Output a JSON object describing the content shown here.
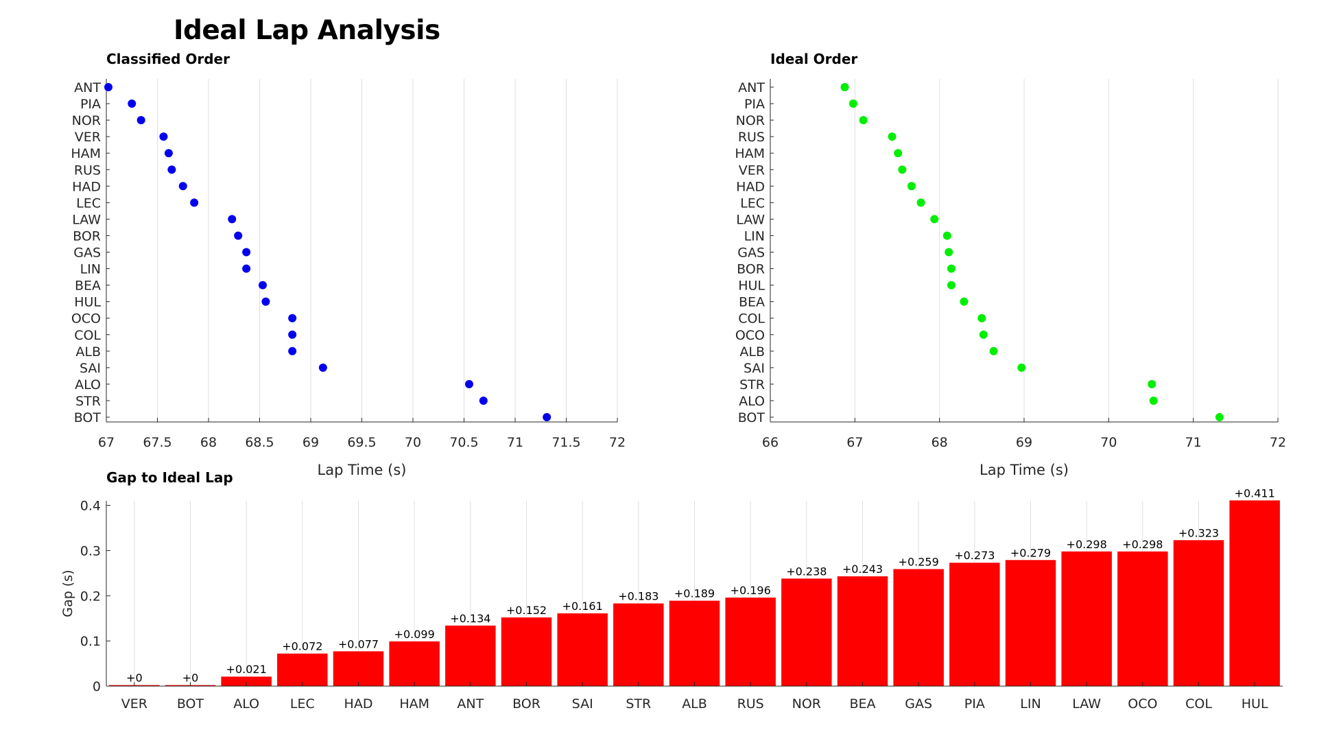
{
  "title": "Ideal Lap Analysis",
  "colors": {
    "classified": "#0000ee",
    "ideal": "#00ee00",
    "bar": "#ff0000",
    "grid": "#dedede"
  },
  "chart_data": [
    {
      "type": "scatter",
      "title": "Classified Order",
      "xlabel": "Lap Time (s)",
      "ylabel": "",
      "xlim": [
        67,
        72
      ],
      "xticks": [
        67,
        67.5,
        68,
        68.5,
        69,
        69.5,
        70,
        70.5,
        71,
        71.5,
        72
      ],
      "grid": true,
      "categories": [
        "ANT",
        "PIA",
        "NOR",
        "VER",
        "HAM",
        "RUS",
        "HAD",
        "LEC",
        "LAW",
        "BOR",
        "GAS",
        "LIN",
        "BEA",
        "HUL",
        "OCO",
        "COL",
        "ALB",
        "SAI",
        "ALO",
        "STR",
        "BOT"
      ],
      "values": [
        67.02,
        67.25,
        67.34,
        67.56,
        67.61,
        67.64,
        67.75,
        67.86,
        68.23,
        68.29,
        68.37,
        68.37,
        68.53,
        68.56,
        68.82,
        68.82,
        68.82,
        69.12,
        70.55,
        70.69,
        71.31
      ]
    },
    {
      "type": "scatter",
      "title": "Ideal Order",
      "xlabel": "Lap Time (s)",
      "ylabel": "",
      "xlim": [
        66,
        72
      ],
      "xticks": [
        66,
        67,
        68,
        69,
        70,
        71,
        72
      ],
      "grid": true,
      "categories": [
        "ANT",
        "PIA",
        "NOR",
        "RUS",
        "HAM",
        "VER",
        "HAD",
        "LEC",
        "LAW",
        "LIN",
        "GAS",
        "BOR",
        "HUL",
        "BEA",
        "COL",
        "OCO",
        "ALB",
        "SAI",
        "STR",
        "ALO",
        "BOT"
      ],
      "values": [
        66.88,
        66.98,
        67.1,
        67.44,
        67.51,
        67.56,
        67.67,
        67.78,
        67.94,
        68.09,
        68.11,
        68.14,
        68.14,
        68.29,
        68.5,
        68.52,
        68.64,
        68.97,
        70.51,
        70.53,
        71.31
      ]
    },
    {
      "type": "bar",
      "title": "Gap to Ideal Lap",
      "xlabel": "",
      "ylabel": "Gap (s)",
      "ylim": [
        0,
        0.41
      ],
      "yticks": [
        0,
        0.1,
        0.2,
        0.3,
        0.4
      ],
      "grid": true,
      "categories": [
        "VER",
        "BOT",
        "ALO",
        "LEC",
        "HAD",
        "HAM",
        "ANT",
        "BOR",
        "SAI",
        "STR",
        "ALB",
        "RUS",
        "NOR",
        "BEA",
        "GAS",
        "PIA",
        "LIN",
        "LAW",
        "OCO",
        "COL",
        "HUL"
      ],
      "values": [
        0,
        0,
        0.021,
        0.072,
        0.077,
        0.099,
        0.134,
        0.152,
        0.161,
        0.183,
        0.189,
        0.196,
        0.238,
        0.243,
        0.259,
        0.273,
        0.279,
        0.298,
        0.298,
        0.323,
        0.411
      ],
      "labels": [
        "+0",
        "+0",
        "+0.021",
        "+0.072",
        "+0.077",
        "+0.099",
        "+0.134",
        "+0.152",
        "+0.161",
        "+0.183",
        "+0.189",
        "+0.196",
        "+0.238",
        "+0.243",
        "+0.259",
        "+0.273",
        "+0.279",
        "+0.298",
        "+0.298",
        "+0.323",
        "+0.411"
      ]
    }
  ]
}
